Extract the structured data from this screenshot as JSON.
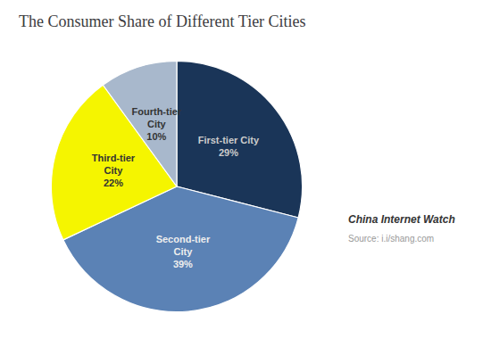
{
  "chart_data": {
    "type": "pie",
    "title": "The Consumer Share of Different Tier Cities",
    "categories": [
      "First-tier City",
      "Second-tier\nCity",
      "Third-tier\nCity",
      "Fourth-tier\nCity"
    ],
    "values": [
      29,
      39,
      22,
      10
    ],
    "value_labels": [
      "29%",
      "39%",
      "22%",
      "10%"
    ],
    "colors": [
      "#1a3558",
      "#5b82b5",
      "#f5f500",
      "#a8b8cc"
    ],
    "data_labels": true,
    "legend": false,
    "annotations": [
      "China Internet Watch",
      "Source: i.i/shang.com"
    ]
  }
}
